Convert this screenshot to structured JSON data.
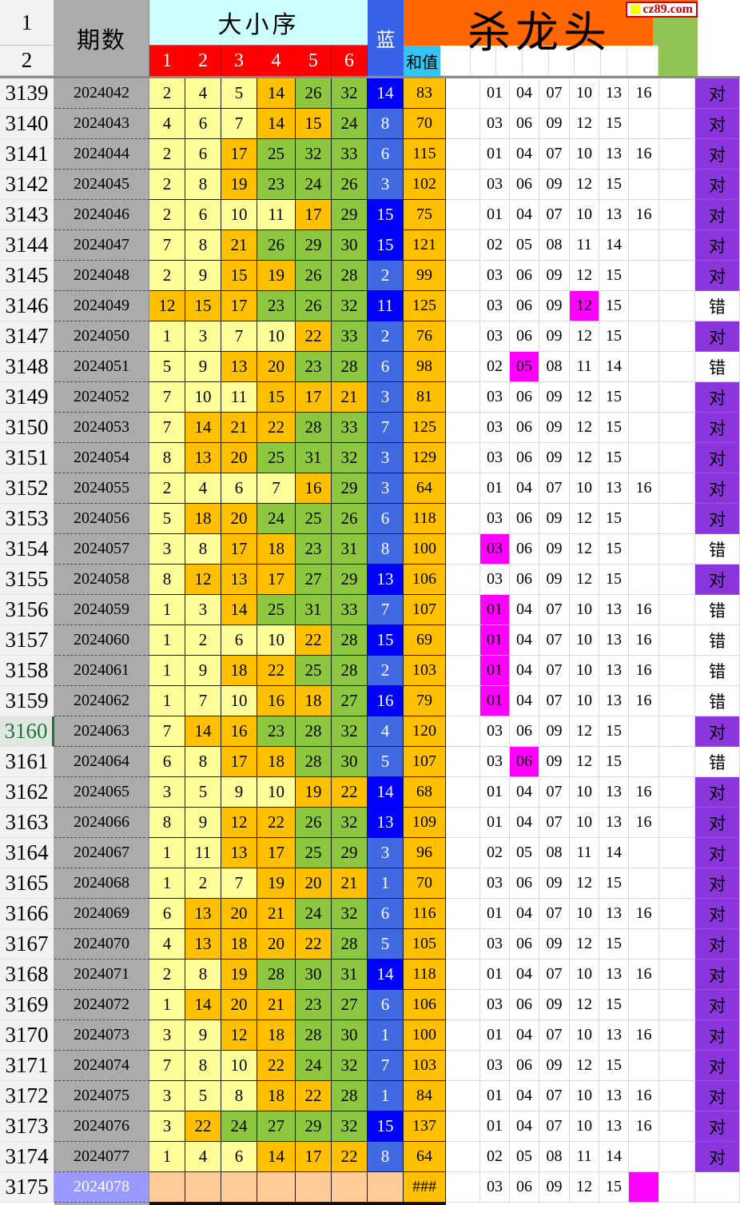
{
  "site": {
    "logo_text": "cz89.com"
  },
  "header": {
    "row1_label": "1",
    "row2_label": "2",
    "period_label": "期数",
    "size_order_label": "大小序",
    "ball_cols": [
      "1",
      "2",
      "3",
      "4",
      "5",
      "6"
    ],
    "blue_label": "蓝",
    "sum_label": "和值",
    "kill_label": "杀龙头"
  },
  "legend": {
    "result_ok": "对",
    "result_bad": "错",
    "empty_sum": "###"
  },
  "colors": {
    "orange": "#FF6600",
    "red": "#FF0000",
    "cyan_light": "#CCFFFF",
    "cyan_sum": "#33C5F1",
    "blue_header": "#3A62E8",
    "blue_dark": "#0000FF",
    "blue_med": "#4169E1",
    "yellow": "#FFFF99",
    "gold": "#FFC000",
    "green_ball": "#8DC63F",
    "green_corner": "#92C355",
    "gray": "#ABABAB",
    "magenta": "#FF00FF",
    "purple": "#8B35DC",
    "peach": "#FFCC99",
    "periwinkle": "#9999FF",
    "sel_green": "#217346",
    "logo_red": "#CC0000",
    "logo_yellow": "#FFFF00"
  },
  "rows": [
    {
      "no": "3139",
      "period": "2024042",
      "balls": [
        2,
        4,
        5,
        14,
        26,
        32
      ],
      "blue": 14,
      "sum": "83",
      "kill": [
        "01",
        "04",
        "07",
        "10",
        "13",
        "16"
      ],
      "hl": -1,
      "result": "对",
      "selected": false
    },
    {
      "no": "3140",
      "period": "2024043",
      "balls": [
        4,
        6,
        7,
        14,
        15,
        24
      ],
      "blue": 8,
      "sum": "70",
      "kill": [
        "03",
        "06",
        "09",
        "12",
        "15"
      ],
      "hl": -1,
      "result": "对",
      "selected": false
    },
    {
      "no": "3141",
      "period": "2024044",
      "balls": [
        2,
        6,
        17,
        25,
        32,
        33
      ],
      "blue": 6,
      "sum": "115",
      "kill": [
        "01",
        "04",
        "07",
        "10",
        "13",
        "16"
      ],
      "hl": -1,
      "result": "对",
      "selected": false
    },
    {
      "no": "3142",
      "period": "2024045",
      "balls": [
        2,
        8,
        19,
        23,
        24,
        26
      ],
      "blue": 3,
      "sum": "102",
      "kill": [
        "03",
        "06",
        "09",
        "12",
        "15"
      ],
      "hl": -1,
      "result": "对",
      "selected": false
    },
    {
      "no": "3143",
      "period": "2024046",
      "balls": [
        2,
        6,
        10,
        11,
        17,
        29
      ],
      "blue": 15,
      "sum": "75",
      "kill": [
        "01",
        "04",
        "07",
        "10",
        "13",
        "16"
      ],
      "hl": -1,
      "result": "对",
      "selected": false
    },
    {
      "no": "3144",
      "period": "2024047",
      "balls": [
        7,
        8,
        21,
        26,
        29,
        30
      ],
      "blue": 15,
      "sum": "121",
      "kill": [
        "02",
        "05",
        "08",
        "11",
        "14"
      ],
      "hl": -1,
      "result": "对",
      "selected": false
    },
    {
      "no": "3145",
      "period": "2024048",
      "balls": [
        2,
        9,
        15,
        19,
        26,
        28
      ],
      "blue": 2,
      "sum": "99",
      "kill": [
        "03",
        "06",
        "09",
        "12",
        "15"
      ],
      "hl": -1,
      "result": "对",
      "selected": false
    },
    {
      "no": "3146",
      "period": "2024049",
      "balls": [
        12,
        15,
        17,
        23,
        26,
        32
      ],
      "blue": 11,
      "sum": "125",
      "kill": [
        "03",
        "06",
        "09",
        "12",
        "15"
      ],
      "hl": 3,
      "result": "错",
      "selected": false
    },
    {
      "no": "3147",
      "period": "2024050",
      "balls": [
        1,
        3,
        7,
        10,
        22,
        33
      ],
      "blue": 2,
      "sum": "76",
      "kill": [
        "03",
        "06",
        "09",
        "12",
        "15"
      ],
      "hl": -1,
      "result": "对",
      "selected": false
    },
    {
      "no": "3148",
      "period": "2024051",
      "balls": [
        5,
        9,
        13,
        20,
        23,
        28
      ],
      "blue": 6,
      "sum": "98",
      "kill": [
        "02",
        "05",
        "08",
        "11",
        "14"
      ],
      "hl": 1,
      "result": "错",
      "selected": false
    },
    {
      "no": "3149",
      "period": "2024052",
      "balls": [
        7,
        10,
        11,
        15,
        17,
        21
      ],
      "blue": 3,
      "sum": "81",
      "kill": [
        "03",
        "06",
        "09",
        "12",
        "15"
      ],
      "hl": -1,
      "result": "对",
      "selected": false
    },
    {
      "no": "3150",
      "period": "2024053",
      "balls": [
        7,
        14,
        21,
        22,
        28,
        33
      ],
      "blue": 7,
      "sum": "125",
      "kill": [
        "03",
        "06",
        "09",
        "12",
        "15"
      ],
      "hl": -1,
      "result": "对",
      "selected": false
    },
    {
      "no": "3151",
      "period": "2024054",
      "balls": [
        8,
        13,
        20,
        25,
        31,
        32
      ],
      "blue": 3,
      "sum": "129",
      "kill": [
        "03",
        "06",
        "09",
        "12",
        "15"
      ],
      "hl": -1,
      "result": "对",
      "selected": false
    },
    {
      "no": "3152",
      "period": "2024055",
      "balls": [
        2,
        4,
        6,
        7,
        16,
        29
      ],
      "blue": 3,
      "sum": "64",
      "kill": [
        "01",
        "04",
        "07",
        "10",
        "13",
        "16"
      ],
      "hl": -1,
      "result": "对",
      "selected": false
    },
    {
      "no": "3153",
      "period": "2024056",
      "balls": [
        5,
        18,
        20,
        24,
        25,
        26
      ],
      "blue": 6,
      "sum": "118",
      "kill": [
        "03",
        "06",
        "09",
        "12",
        "15"
      ],
      "hl": -1,
      "result": "对",
      "selected": false
    },
    {
      "no": "3154",
      "period": "2024057",
      "balls": [
        3,
        8,
        17,
        18,
        23,
        31
      ],
      "blue": 8,
      "sum": "100",
      "kill": [
        "03",
        "06",
        "09",
        "12",
        "15"
      ],
      "hl": 0,
      "result": "错",
      "selected": false
    },
    {
      "no": "3155",
      "period": "2024058",
      "balls": [
        8,
        12,
        13,
        17,
        27,
        29
      ],
      "blue": 13,
      "sum": "106",
      "kill": [
        "03",
        "06",
        "09",
        "12",
        "15"
      ],
      "hl": -1,
      "result": "对",
      "selected": false
    },
    {
      "no": "3156",
      "period": "2024059",
      "balls": [
        1,
        3,
        14,
        25,
        31,
        33
      ],
      "blue": 7,
      "sum": "107",
      "kill": [
        "01",
        "04",
        "07",
        "10",
        "13",
        "16"
      ],
      "hl": 0,
      "result": "错",
      "selected": false
    },
    {
      "no": "3157",
      "period": "2024060",
      "balls": [
        1,
        2,
        6,
        10,
        22,
        28
      ],
      "blue": 15,
      "sum": "69",
      "kill": [
        "01",
        "04",
        "07",
        "10",
        "13",
        "16"
      ],
      "hl": 0,
      "result": "错",
      "selected": false
    },
    {
      "no": "3158",
      "period": "2024061",
      "balls": [
        1,
        9,
        18,
        22,
        25,
        28
      ],
      "blue": 2,
      "sum": "103",
      "kill": [
        "01",
        "04",
        "07",
        "10",
        "13",
        "16"
      ],
      "hl": 0,
      "result": "错",
      "selected": false
    },
    {
      "no": "3159",
      "period": "2024062",
      "balls": [
        1,
        7,
        10,
        16,
        18,
        27
      ],
      "blue": 16,
      "sum": "79",
      "kill": [
        "01",
        "04",
        "07",
        "10",
        "13",
        "16"
      ],
      "hl": 0,
      "result": "错",
      "selected": false
    },
    {
      "no": "3160",
      "period": "2024063",
      "balls": [
        7,
        14,
        16,
        23,
        28,
        32
      ],
      "blue": 4,
      "sum": "120",
      "kill": [
        "03",
        "06",
        "09",
        "12",
        "15"
      ],
      "hl": -1,
      "result": "对",
      "selected": true
    },
    {
      "no": "3161",
      "period": "2024064",
      "balls": [
        6,
        8,
        17,
        18,
        28,
        30
      ],
      "blue": 5,
      "sum": "107",
      "kill": [
        "03",
        "06",
        "09",
        "12",
        "15"
      ],
      "hl": 1,
      "result": "错",
      "selected": false
    },
    {
      "no": "3162",
      "period": "2024065",
      "balls": [
        3,
        5,
        9,
        10,
        19,
        22
      ],
      "blue": 14,
      "sum": "68",
      "kill": [
        "01",
        "04",
        "07",
        "10",
        "13",
        "16"
      ],
      "hl": -1,
      "result": "对",
      "selected": false
    },
    {
      "no": "3163",
      "period": "2024066",
      "balls": [
        8,
        9,
        12,
        22,
        26,
        32
      ],
      "blue": 13,
      "sum": "109",
      "kill": [
        "01",
        "04",
        "07",
        "10",
        "13",
        "16"
      ],
      "hl": -1,
      "result": "对",
      "selected": false
    },
    {
      "no": "3164",
      "period": "2024067",
      "balls": [
        1,
        11,
        13,
        17,
        25,
        29
      ],
      "blue": 3,
      "sum": "96",
      "kill": [
        "02",
        "05",
        "08",
        "11",
        "14"
      ],
      "hl": -1,
      "result": "对",
      "selected": false
    },
    {
      "no": "3165",
      "period": "2024068",
      "balls": [
        1,
        2,
        7,
        19,
        20,
        21
      ],
      "blue": 1,
      "sum": "70",
      "kill": [
        "03",
        "06",
        "09",
        "12",
        "15"
      ],
      "hl": -1,
      "result": "对",
      "selected": false
    },
    {
      "no": "3166",
      "period": "2024069",
      "balls": [
        6,
        13,
        20,
        21,
        24,
        32
      ],
      "blue": 6,
      "sum": "116",
      "kill": [
        "01",
        "04",
        "07",
        "10",
        "13",
        "16"
      ],
      "hl": -1,
      "result": "对",
      "selected": false
    },
    {
      "no": "3167",
      "period": "2024070",
      "balls": [
        4,
        13,
        18,
        20,
        22,
        28
      ],
      "blue": 5,
      "sum": "105",
      "kill": [
        "03",
        "06",
        "09",
        "12",
        "15"
      ],
      "hl": -1,
      "result": "对",
      "selected": false
    },
    {
      "no": "3168",
      "period": "2024071",
      "balls": [
        2,
        8,
        19,
        28,
        30,
        31
      ],
      "blue": 14,
      "sum": "118",
      "kill": [
        "01",
        "04",
        "07",
        "10",
        "13",
        "16"
      ],
      "hl": -1,
      "result": "对",
      "selected": false
    },
    {
      "no": "3169",
      "period": "2024072",
      "balls": [
        1,
        14,
        20,
        21,
        23,
        27
      ],
      "blue": 6,
      "sum": "106",
      "kill": [
        "03",
        "06",
        "09",
        "12",
        "15"
      ],
      "hl": -1,
      "result": "对",
      "selected": false
    },
    {
      "no": "3170",
      "period": "2024073",
      "balls": [
        3,
        9,
        12,
        18,
        28,
        30
      ],
      "blue": 1,
      "sum": "100",
      "kill": [
        "01",
        "04",
        "07",
        "10",
        "13",
        "16"
      ],
      "hl": -1,
      "result": "对",
      "selected": false
    },
    {
      "no": "3171",
      "period": "2024074",
      "balls": [
        7,
        8,
        10,
        22,
        24,
        32
      ],
      "blue": 7,
      "sum": "103",
      "kill": [
        "03",
        "06",
        "09",
        "12",
        "15"
      ],
      "hl": -1,
      "result": "对",
      "selected": false
    },
    {
      "no": "3172",
      "period": "2024075",
      "balls": [
        3,
        5,
        8,
        18,
        22,
        28
      ],
      "blue": 1,
      "sum": "84",
      "kill": [
        "01",
        "04",
        "07",
        "10",
        "13",
        "16"
      ],
      "hl": -1,
      "result": "对",
      "selected": false
    },
    {
      "no": "3173",
      "period": "2024076",
      "balls": [
        3,
        22,
        24,
        27,
        29,
        32
      ],
      "blue": 15,
      "sum": "137",
      "kill": [
        "01",
        "04",
        "07",
        "10",
        "13",
        "16"
      ],
      "hl": -1,
      "result": "对",
      "selected": false
    },
    {
      "no": "3174",
      "period": "2024077",
      "balls": [
        1,
        4,
        6,
        14,
        17,
        22
      ],
      "blue": 8,
      "sum": "64",
      "kill": [
        "02",
        "05",
        "08",
        "11",
        "14"
      ],
      "hl": -1,
      "result": "对",
      "selected": false
    },
    {
      "no": "3175",
      "period": "2024078",
      "balls": [],
      "blue": null,
      "sum": "###",
      "kill": [
        "03",
        "06",
        "09",
        "12",
        "15"
      ],
      "hl": 5,
      "result": "",
      "selected": false
    }
  ]
}
